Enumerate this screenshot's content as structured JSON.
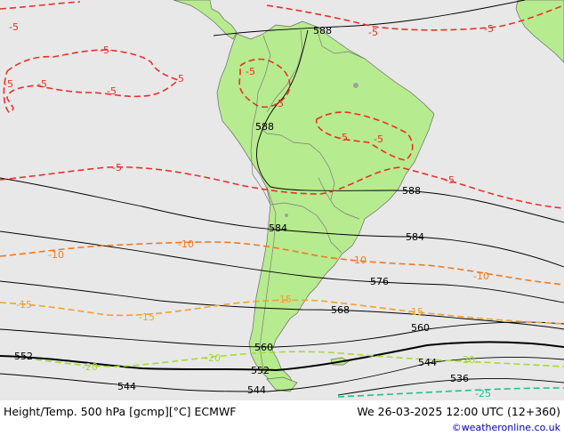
{
  "footer": {
    "title": "Height/Temp. 500 hPa [gcmp][°C] ECMWF",
    "datetime": "We 26-03-2025 12:00 UTC (12+360)",
    "credit": "©weatheronline.co.uk"
  },
  "map": {
    "ocean_color": "#e8e8e8",
    "land_color": "#b7eb8f",
    "border_color": "#777777",
    "height_contour_color": "#000000",
    "temperature_colors": {
      "-5": "#e8302a",
      "-10": "#f07820",
      "-15": "#f0a030",
      "-20": "#a8d838",
      "-25": "#20c090"
    },
    "height_labels": [
      {
        "text": "588",
        "kind": "height"
      },
      {
        "text": "588",
        "kind": "height"
      },
      {
        "text": "588",
        "kind": "height"
      },
      {
        "text": "584",
        "kind": "height"
      },
      {
        "text": "584",
        "kind": "height"
      },
      {
        "text": "576",
        "kind": "height"
      },
      {
        "text": "568",
        "kind": "height"
      },
      {
        "text": "560",
        "kind": "height"
      },
      {
        "text": "560",
        "kind": "height"
      },
      {
        "text": "552",
        "kind": "height"
      },
      {
        "text": "552",
        "kind": "height"
      },
      {
        "text": "544",
        "kind": "height"
      },
      {
        "text": "544",
        "kind": "height"
      },
      {
        "text": "544",
        "kind": "height"
      },
      {
        "text": "536",
        "kind": "height"
      }
    ],
    "temp_labels": [
      {
        "text": "-5",
        "level": "-5"
      },
      {
        "text": "-5",
        "level": "-5"
      },
      {
        "text": "-5",
        "level": "-5"
      },
      {
        "text": "-5",
        "level": "-5"
      },
      {
        "text": "-5",
        "level": "-5"
      },
      {
        "text": "-5",
        "level": "-5"
      },
      {
        "text": "-5",
        "level": "-5"
      },
      {
        "text": "-5",
        "level": "-5"
      },
      {
        "text": "-5",
        "level": "-5"
      },
      {
        "text": "-5",
        "level": "-5"
      },
      {
        "text": "-5",
        "level": "-5"
      },
      {
        "text": "-5",
        "level": "-5"
      },
      {
        "text": "-5",
        "level": "-5"
      },
      {
        "text": "-5",
        "level": "-5"
      },
      {
        "text": "-10",
        "level": "-10"
      },
      {
        "text": "-10",
        "level": "-10"
      },
      {
        "text": "-10",
        "level": "-10"
      },
      {
        "text": "-10",
        "level": "-10"
      },
      {
        "text": "-15",
        "level": "-15"
      },
      {
        "text": "-15",
        "level": "-15"
      },
      {
        "text": "-15",
        "level": "-15"
      },
      {
        "text": "-15",
        "level": "-15"
      },
      {
        "text": "-20",
        "level": "-20"
      },
      {
        "text": "-20",
        "level": "-20"
      },
      {
        "text": "-20",
        "level": "-20"
      },
      {
        "text": "-25",
        "level": "-25"
      }
    ]
  }
}
